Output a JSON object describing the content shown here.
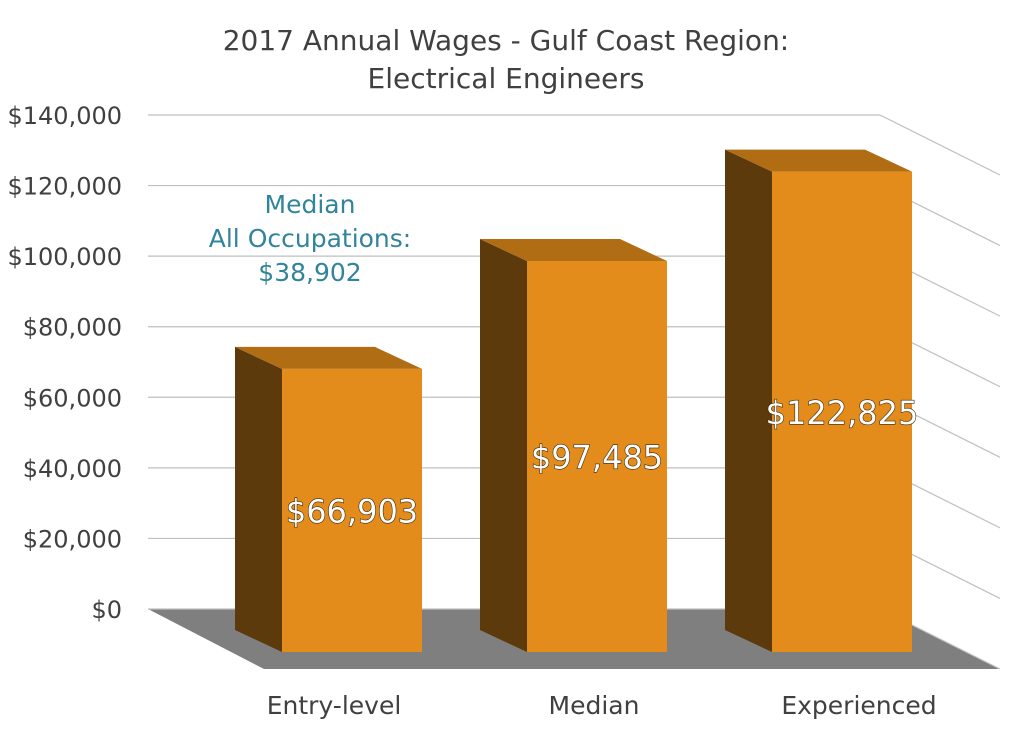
{
  "chart_data": {
    "type": "bar",
    "title": [
      "2017 Annual Wages - Gulf Coast Region:",
      "Electrical Engineers"
    ],
    "categories": [
      "Entry-level",
      "Median",
      "Experienced"
    ],
    "values": [
      66903,
      97485,
      122825
    ],
    "data_labels": [
      "$66,903",
      "$97,485",
      "$122,825"
    ],
    "ylim": [
      0,
      140000
    ],
    "yticks": [
      0,
      20000,
      40000,
      60000,
      80000,
      100000,
      120000,
      140000
    ],
    "ytick_labels": [
      "$0",
      "$20,000",
      "$40,000",
      "$60,000",
      "$80,000",
      "$100,000",
      "$120,000",
      "$140,000"
    ],
    "grid": true,
    "style": "3d-column",
    "annotation": [
      "Median",
      "All Occupations:",
      "$38,902"
    ],
    "colors": {
      "bar_front": "#e38c1b",
      "bar_top": "#b06d14",
      "bar_side": "#5c3a0c",
      "floor": "#7f7f7f",
      "grid": "#bfbfbf",
      "annotation": "#31849b",
      "text": "#404040"
    }
  }
}
